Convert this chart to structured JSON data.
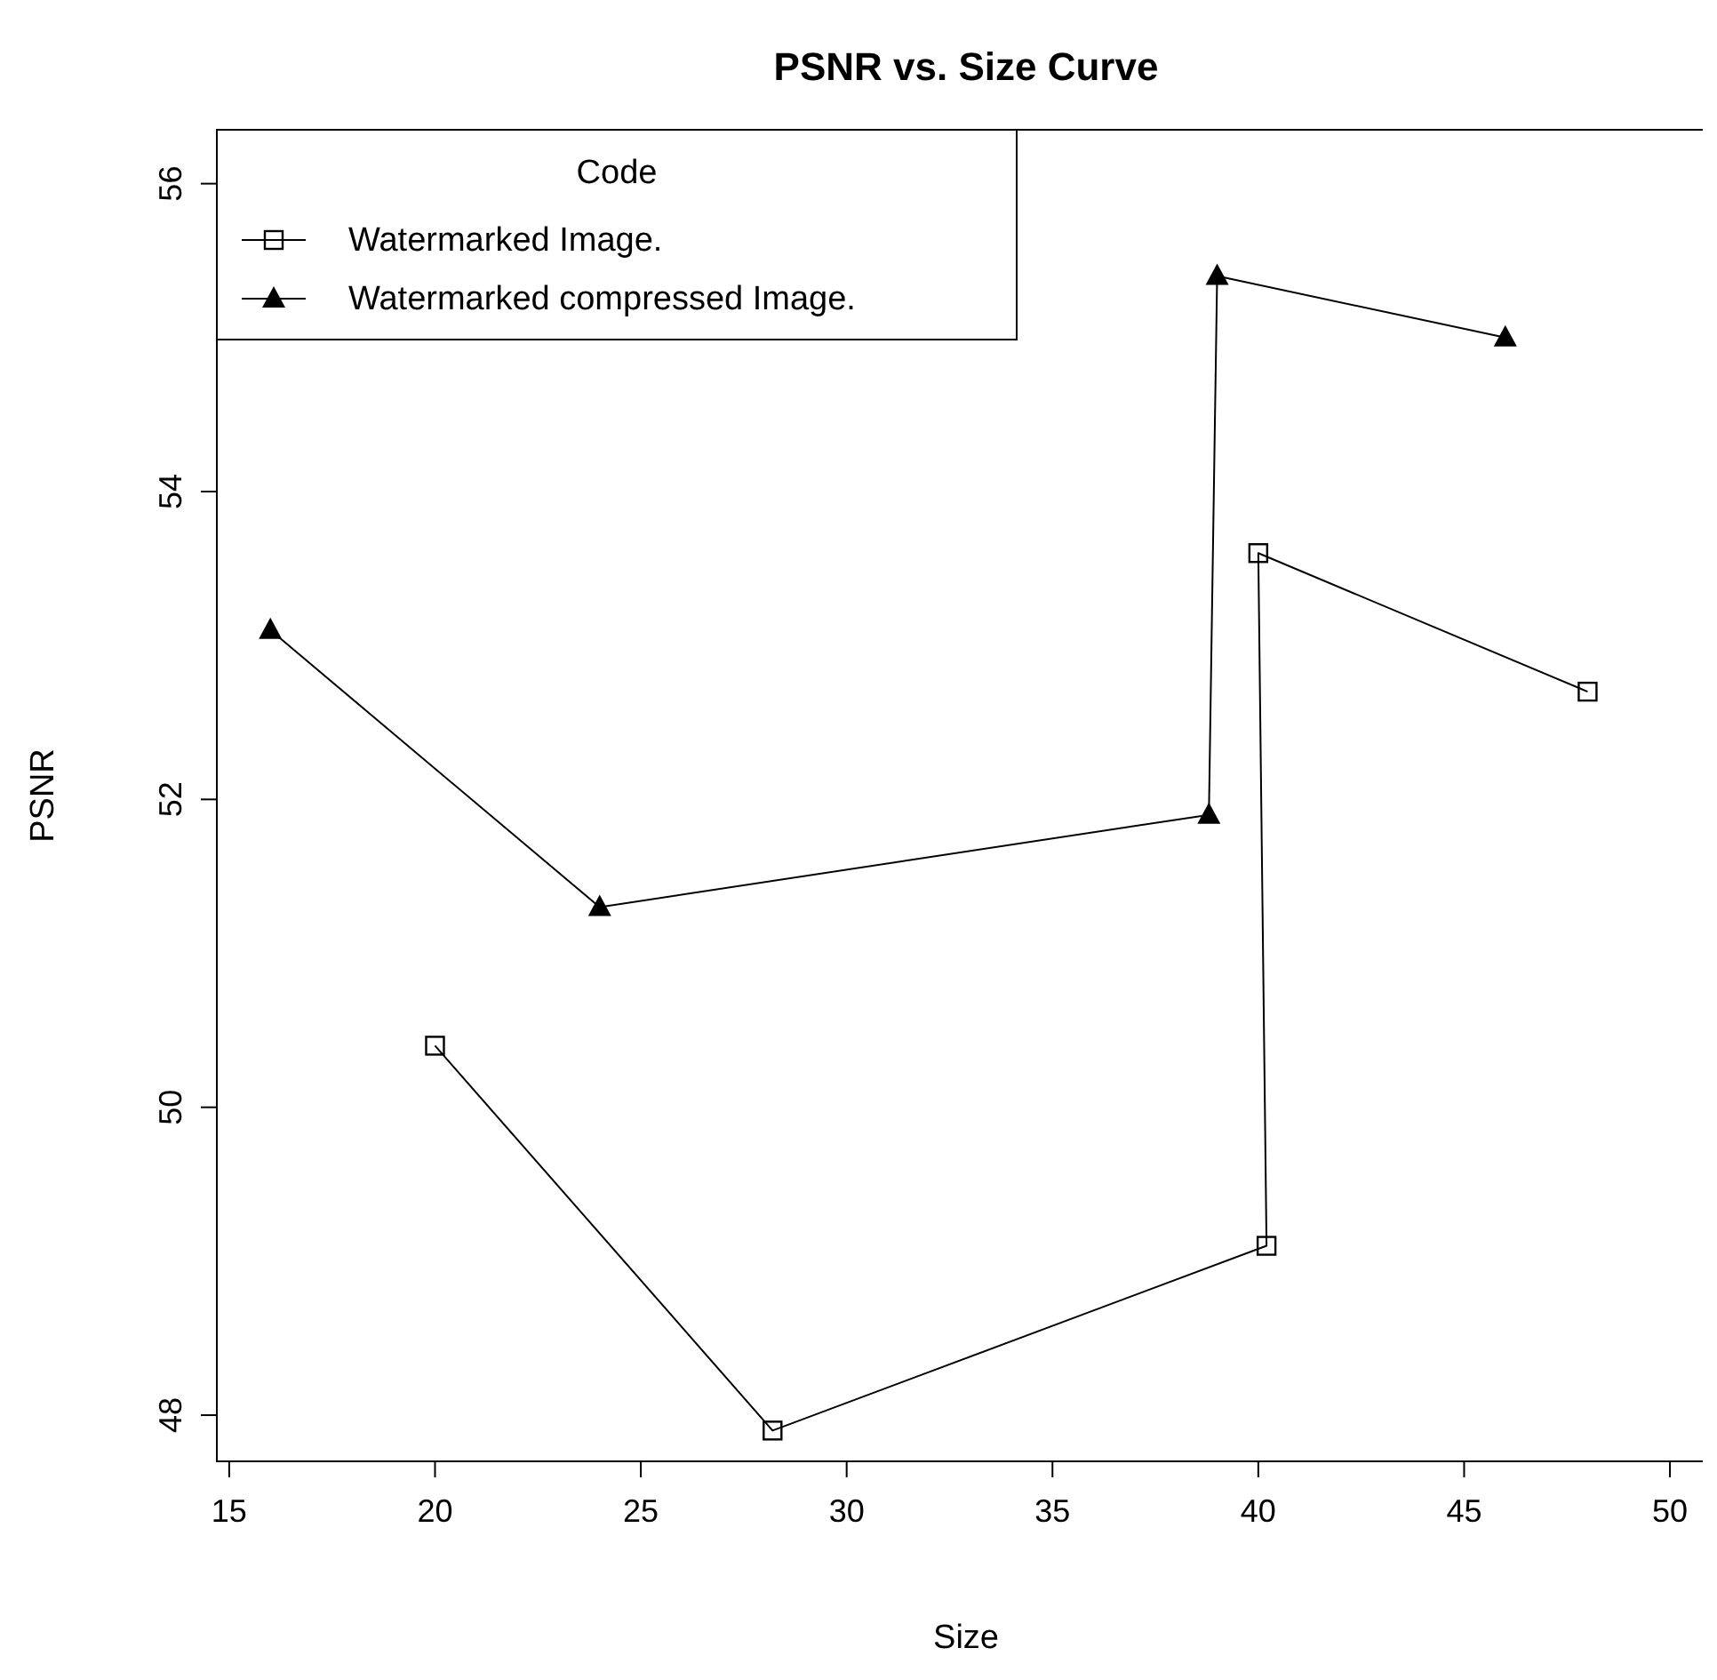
{
  "chart_data": {
    "type": "line",
    "title": "PSNR vs. Size Curve",
    "xlabel": "Size",
    "ylabel": "PSNR",
    "legend_title": "Code",
    "legend": "top left",
    "xlim": [
      14.7,
      51.1
    ],
    "ylim": [
      47.7,
      56.35
    ],
    "xticks": [
      15,
      20,
      25,
      30,
      35,
      40,
      45,
      50
    ],
    "yticks": [
      48,
      50,
      52,
      54,
      56
    ],
    "grid": false,
    "series": [
      {
        "name": "Watermarked Image.",
        "color": "#000000",
        "marker": "square",
        "x": [
          20,
          28.2,
          40.2,
          40,
          48
        ],
        "values": [
          50.4,
          47.9,
          49.1,
          53.6,
          52.7
        ]
      },
      {
        "name": "Watermarked compressed Image.",
        "color": "#000000",
        "marker": "triangle",
        "x": [
          16,
          24,
          38.8,
          39,
          46
        ],
        "values": [
          53.1,
          51.3,
          51.9,
          55.4,
          55.0
        ]
      }
    ]
  }
}
